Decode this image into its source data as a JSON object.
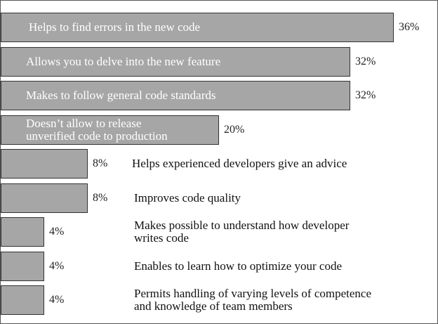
{
  "chart_data": {
    "type": "bar",
    "orientation": "horizontal",
    "categories": [
      "Helps to find errors in the new code",
      "Allows you to delve into the new feature",
      "Makes to follow general code standards",
      "Doesn’t allow to release\nunverified code to production",
      "Helps experienced developers give an advice",
      "Improves code quality",
      "Makes possible to understand how developer\nwrites code",
      "Enables to learn how to optimize your code",
      "Permits handling of varying levels of competence\nand knowledge of team members"
    ],
    "values": [
      36,
      32,
      32,
      20,
      8,
      8,
      4,
      4,
      4
    ],
    "value_labels": [
      "36%",
      "32%",
      "32%",
      "20%",
      "8%",
      "8%",
      "4%",
      "4%",
      "4%"
    ],
    "xlim": [
      0,
      36
    ],
    "grid": false,
    "bar_color": "#a6a6a6"
  }
}
